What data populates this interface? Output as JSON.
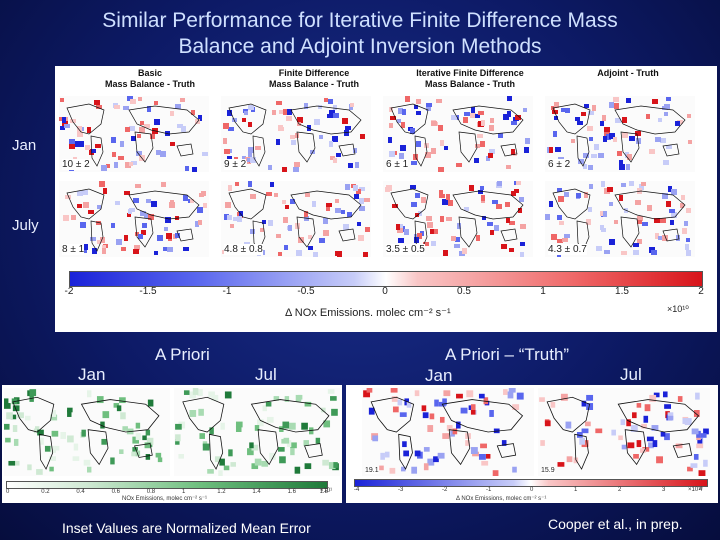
{
  "title_line1": "Similar Performance for Iterative Finite Difference Mass",
  "title_line2": "Balance and Adjoint Inversion Methods",
  "columns": [
    {
      "line1": "Basic",
      "line2": "Mass Balance - Truth"
    },
    {
      "line1": "Finite Difference",
      "line2": "Mass Balance - Truth"
    },
    {
      "line1": "Iterative Finite Difference",
      "line2": "Mass Balance - Truth"
    },
    {
      "line1": "",
      "line2": "Adjoint - Truth"
    }
  ],
  "rows": [
    "Jan",
    "July"
  ],
  "insets_jan": [
    "10 ± 2",
    "9 ± 2",
    "6 ± 1",
    "6 ± 2"
  ],
  "insets_july": [
    "8 ± 1",
    "4.8 ± 0.8",
    "3.5 ± 0.5",
    "4.3 ± 0.7"
  ],
  "colorbar": {
    "ticks": [
      "-2",
      "-1.5",
      "-1",
      "-0.5",
      "0",
      "0.5",
      "1",
      "1.5",
      "2"
    ],
    "label": "Δ NOx Emissions. molec cm⁻² s⁻¹",
    "exponent": "×10¹⁰",
    "colors": {
      "negative": "#1a22d8",
      "zero": "#ffffff",
      "positive": "#d8141a"
    }
  },
  "apriori": {
    "title": "A Priori",
    "jan": "Jan",
    "jul": "Jul",
    "ticks": [
      "0",
      "0.2",
      "0.4",
      "0.6",
      "0.8",
      "1",
      "1.2",
      "1.4",
      "1.6",
      "1.8"
    ],
    "label": "NOx Emissions, molec cm⁻² s⁻¹",
    "exponent": "×10¹",
    "color": "#1f7a3a"
  },
  "apriori_truth": {
    "title": "A Priori – “Truth”",
    "jan": "Jan",
    "jul": "Jul",
    "inset_jan": "19.1",
    "inset_jul": "15.9",
    "ticks": [
      "-4",
      "-3",
      "-2",
      "-1",
      "0",
      "1",
      "2",
      "3",
      "4"
    ],
    "label": "Δ NOx Emissions, molec cm⁻² s⁻¹",
    "exponent": "×10¹⁰"
  },
  "footer_left": "Inset Values are Normalized Mean Error",
  "footer_right": "Cooper et al., in prep."
}
